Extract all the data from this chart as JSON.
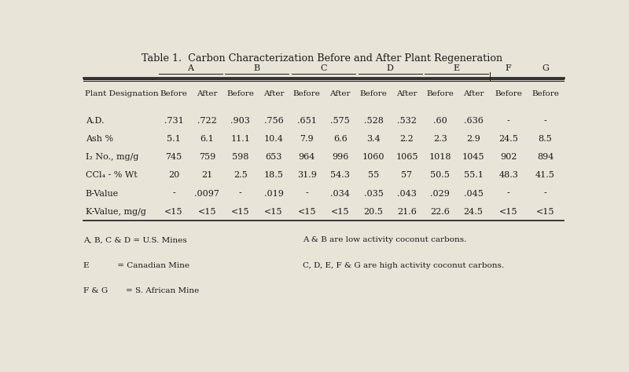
{
  "title": "Table 1.  Carbon Characterization Before and After Plant Regeneration",
  "background_color": "#e8e4d8",
  "text_color": "#1a1a1a",
  "col_groups": [
    "A",
    "B",
    "C",
    "D",
    "E",
    "F",
    "G"
  ],
  "col_headers_sub": [
    "Before",
    "After",
    "Before",
    "After",
    "Before",
    "After",
    "Before",
    "After",
    "Before",
    "After",
    "Before",
    "Before"
  ],
  "row_label_header": "Plant Designation",
  "row_labels": [
    "A.D.",
    "Ash %",
    "I₂ No., mg/g",
    "CCl₄ - % Wt",
    "B-Value",
    "K-Value, mg/g"
  ],
  "data": [
    [
      ".731",
      ".722",
      ".903",
      ".756",
      ".651",
      ".575",
      ".528",
      ".532",
      ".60",
      ".636",
      "-",
      "-"
    ],
    [
      "5.1",
      "6.1",
      "11.1",
      "10.4",
      "7.9",
      "6.6",
      "3.4",
      "2.2",
      "2.3",
      "2.9",
      "24.5",
      "8.5"
    ],
    [
      "745",
      "759",
      "598",
      "653",
      "964",
      "996",
      "1060",
      "1065",
      "1018",
      "1045",
      "902",
      "894"
    ],
    [
      "20",
      "21",
      "2.5",
      "18.5",
      "31.9",
      "54.3",
      "55",
      "57",
      "50.5",
      "55.1",
      "48.3",
      "41.5"
    ],
    [
      "-",
      ".0097",
      "-",
      ".019",
      "-",
      ".034",
      ".035",
      ".043",
      ".029",
      ".045",
      "-",
      "-"
    ],
    [
      "<15",
      "<15",
      "<15",
      "<15",
      "<15",
      "<15",
      "20.5",
      "21.6",
      "22.6",
      "24.5",
      "<15",
      "<15"
    ]
  ],
  "footnotes_left": [
    "A, B, C & D = U.S. Mines",
    "E           = Canadian Mine",
    "F & G       = S. African Mine"
  ],
  "footnotes_right": [
    "A & B are low activity coconut carbons.",
    "C, D, E, F & G are high activity coconut carbons.",
    ""
  ]
}
